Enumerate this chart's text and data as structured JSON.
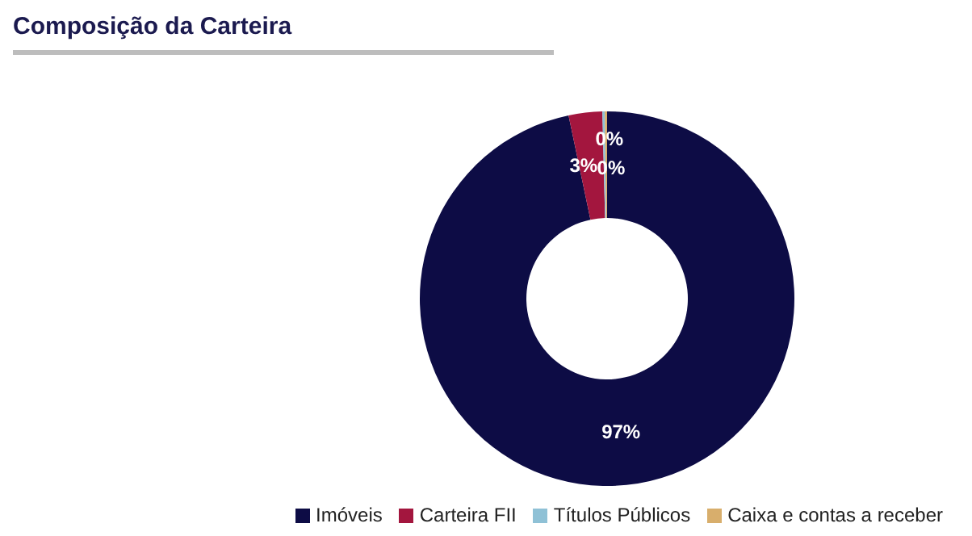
{
  "chart_data": {
    "type": "donut",
    "title": "Composição da Carteira",
    "categories": [
      "Imóveis",
      "Carteira FII",
      "Títulos Públicos",
      "Caixa e contas a receber"
    ],
    "values": [
      96.7,
      2.9,
      0.2,
      0.2
    ],
    "value_labels": [
      "97%",
      "3%",
      "0%",
      "0%"
    ],
    "colors": [
      "#0d0c45",
      "#a3163e",
      "#8fc1d6",
      "#d8ae6c"
    ],
    "legend": "bottom right"
  }
}
